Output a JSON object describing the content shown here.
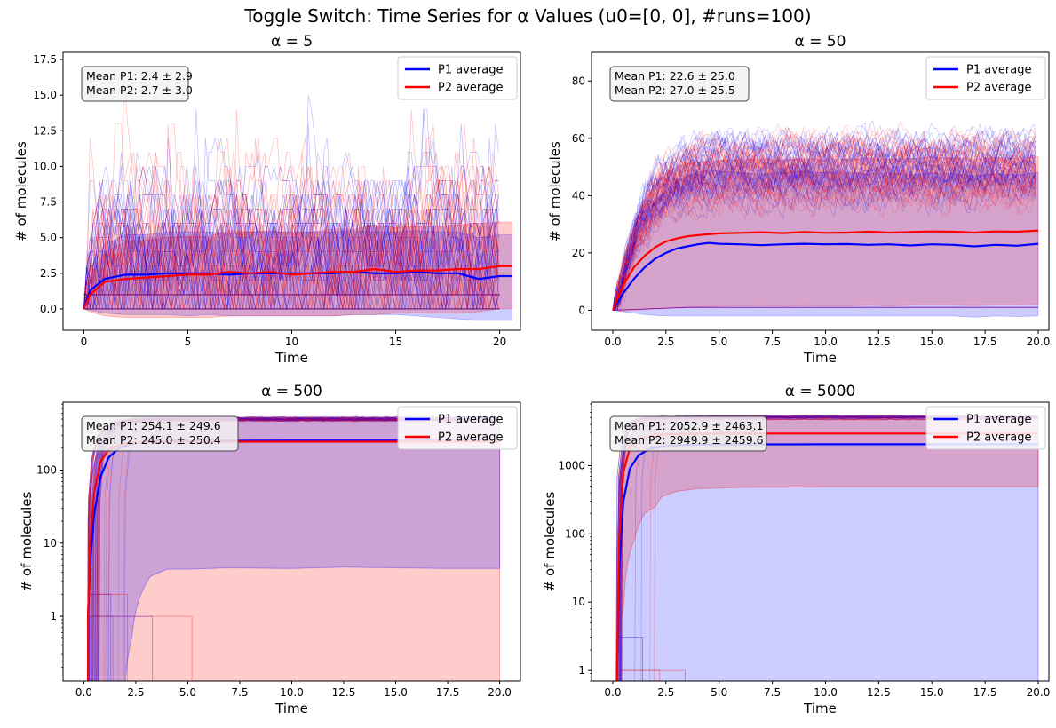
{
  "figure": {
    "suptitle": "Toggle Switch: Time Series for α Values (u0=[0, 0], #runs=100)"
  },
  "colors": {
    "p1": "#0000ff",
    "p2": "#ff0000",
    "p1_band": "#ccccff",
    "p2_band": "#ffcccc",
    "overlap_band": "#d6a3cc"
  },
  "chart_data": [
    {
      "type": "line",
      "title": "α = 5",
      "xlabel": "Time",
      "ylabel": "# of molecules",
      "yscale": "linear",
      "xlim": [
        -1,
        21
      ],
      "ylim": [
        -1.5,
        18
      ],
      "xticks": [
        0,
        5,
        10,
        15,
        20
      ],
      "xtick_labels": [
        "0",
        "5",
        "10",
        "15",
        "20"
      ],
      "yticks": [
        0,
        2.5,
        5,
        7.5,
        10,
        12.5,
        15,
        17.5
      ],
      "ytick_labels": [
        "0.0",
        "2.5",
        "5.0",
        "7.5",
        "10.0",
        "12.5",
        "15.0",
        "17.5"
      ],
      "legend": [
        "P1 average",
        "P2 average"
      ],
      "legend_position": "top-right",
      "stats_box": [
        "Mean P1: 2.4 ± 2.9",
        "Mean P2: 2.7 ± 3.0"
      ],
      "series": [
        {
          "name": "P1 average",
          "x": [
            0,
            0.3,
            1,
            2,
            3,
            4,
            5,
            6,
            7,
            8,
            9,
            10,
            11,
            12,
            13,
            14,
            15,
            16,
            17,
            18,
            19,
            20,
            20.6
          ],
          "values": [
            0,
            1.3,
            2.1,
            2.4,
            2.4,
            2.5,
            2.5,
            2.5,
            2.4,
            2.5,
            2.5,
            2.5,
            2.5,
            2.5,
            2.6,
            2.5,
            2.5,
            2.6,
            2.5,
            2.5,
            2.1,
            2.3,
            2.3
          ]
        },
        {
          "name": "P2 average",
          "x": [
            0,
            0.3,
            1,
            2,
            3,
            4,
            5,
            6,
            7,
            8,
            9,
            10,
            11,
            12,
            13,
            14,
            15,
            16,
            17,
            18,
            19,
            20,
            20.6
          ],
          "values": [
            0,
            1.0,
            1.9,
            2.1,
            2.2,
            2.3,
            2.4,
            2.4,
            2.6,
            2.5,
            2.6,
            2.4,
            2.5,
            2.6,
            2.6,
            2.8,
            2.6,
            2.7,
            2.7,
            2.8,
            2.8,
            3.0,
            3.0
          ]
        }
      ],
      "p1_lower": [
        0,
        -0.1,
        -0.3,
        -0.4,
        -0.4,
        -0.4,
        -0.5,
        -0.4,
        -0.5,
        -0.5,
        -0.5,
        -0.5,
        -0.5,
        -0.5,
        -0.4,
        -0.4,
        -0.4,
        -0.5,
        -0.6,
        -0.7,
        -0.8,
        -0.8,
        -0.8
      ],
      "p1_upper": [
        0,
        2.8,
        4.5,
        5.2,
        5.2,
        5.4,
        5.4,
        5.4,
        5.3,
        5.4,
        5.4,
        5.4,
        5.4,
        5.4,
        5.5,
        5.4,
        5.4,
        5.5,
        5.4,
        5.4,
        5.0,
        5.2,
        5.2
      ],
      "p2_lower": [
        0,
        -0.2,
        -0.5,
        -0.6,
        -0.6,
        -0.6,
        -0.6,
        -0.6,
        -0.5,
        -0.5,
        -0.5,
        -0.5,
        -0.5,
        -0.5,
        -0.4,
        -0.4,
        -0.3,
        -0.3,
        -0.3,
        -0.3,
        -0.2,
        0.0,
        0.0
      ],
      "p2_upper": [
        0,
        2.3,
        4.0,
        4.7,
        4.8,
        5.0,
        5.1,
        5.1,
        5.5,
        5.4,
        5.5,
        5.3,
        5.4,
        5.6,
        5.6,
        5.9,
        5.7,
        5.8,
        5.8,
        5.9,
        6.0,
        6.1,
        6.1
      ]
    },
    {
      "type": "line",
      "title": "α = 50",
      "xlabel": "Time",
      "ylabel": "# of molecules",
      "yscale": "linear",
      "xlim": [
        -1,
        20.5
      ],
      "ylim": [
        -7,
        90
      ],
      "xticks": [
        0,
        2.5,
        5,
        7.5,
        10,
        12.5,
        15,
        17.5,
        20
      ],
      "xtick_labels": [
        "0.0",
        "2.5",
        "5.0",
        "7.5",
        "10.0",
        "12.5",
        "15.0",
        "17.5",
        "20.0"
      ],
      "yticks": [
        0,
        20,
        40,
        60,
        80
      ],
      "ytick_labels": [
        "0",
        "20",
        "40",
        "60",
        "80"
      ],
      "legend": [
        "P1 average",
        "P2 average"
      ],
      "legend_position": "top-right",
      "stats_box": [
        "Mean P1: 22.6 ± 25.0",
        "Mean P2: 27.0 ± 25.5"
      ],
      "series": [
        {
          "name": "P1 average",
          "x": [
            0,
            0.5,
            1,
            1.5,
            2,
            2.5,
            3,
            3.5,
            4,
            4.5,
            5,
            6,
            7,
            8,
            9,
            10,
            11,
            12,
            13,
            14,
            15,
            16,
            17,
            18,
            19,
            20
          ],
          "values": [
            0,
            6,
            11,
            15,
            18,
            20,
            21.5,
            22.3,
            23,
            23.5,
            23.2,
            23,
            22.7,
            23,
            23.2,
            23,
            23.1,
            22.8,
            23,
            22.6,
            23,
            22.8,
            22.3,
            22.8,
            22.5,
            23.2
          ]
        },
        {
          "name": "P2 average",
          "x": [
            0,
            0.5,
            1,
            1.5,
            2,
            2.5,
            3,
            3.5,
            4,
            4.5,
            5,
            6,
            7,
            8,
            9,
            10,
            11,
            12,
            13,
            14,
            15,
            16,
            17,
            18,
            19,
            20
          ],
          "values": [
            0,
            9,
            15,
            19,
            22,
            24,
            25,
            25.8,
            26.2,
            26.5,
            26.8,
            27,
            27.2,
            26.9,
            27.3,
            27,
            27.1,
            27.4,
            27.1,
            27.3,
            27.5,
            27.4,
            27.1,
            27.5,
            27.4,
            27.8
          ]
        }
      ],
      "p1_lower": [
        0,
        -0.5,
        -1,
        -1.5,
        -1.8,
        -2,
        -2,
        -2,
        -2,
        -2,
        -2,
        -2,
        -2,
        -2,
        -2,
        -2,
        -2,
        -2,
        -2,
        -2,
        -2,
        -2,
        -2.4,
        -2,
        -2.2,
        -2
      ],
      "p1_upper": [
        0,
        12,
        23,
        32,
        38,
        42,
        45,
        47,
        48,
        49,
        48.5,
        48,
        47.5,
        48,
        48.4,
        48,
        48.2,
        47.6,
        48,
        47.2,
        48,
        47.6,
        47,
        47.6,
        47.2,
        48.2
      ],
      "p2_lower": [
        0,
        -0.3,
        0,
        0.2,
        0.4,
        0.6,
        0.8,
        1,
        1.2,
        1.3,
        1.4,
        1.5,
        1.6,
        1.4,
        1.6,
        1.5,
        1.5,
        1.7,
        1.5,
        1.7,
        1.8,
        1.7,
        1.6,
        1.8,
        1.8,
        2
      ],
      "p2_upper": [
        0,
        18,
        30,
        38,
        44,
        48,
        50,
        51,
        51.5,
        52,
        52.3,
        52.5,
        52.8,
        52.4,
        53,
        52.5,
        52.7,
        53.1,
        52.6,
        53,
        53.3,
        53.2,
        52.7,
        53.2,
        53,
        53.6
      ]
    },
    {
      "type": "line",
      "title": "α = 500",
      "xlabel": "Time",
      "ylabel": "# of molecules",
      "yscale": "log",
      "xlim": [
        -1,
        21
      ],
      "ylim": [
        0.13,
        850
      ],
      "xticks": [
        0,
        2.5,
        5,
        7.5,
        10,
        12.5,
        15,
        17.5,
        20
      ],
      "xtick_labels": [
        "0.0",
        "2.5",
        "5.0",
        "7.5",
        "10.0",
        "12.5",
        "15.0",
        "17.5",
        "20.0"
      ],
      "yticks": [
        1,
        10,
        100
      ],
      "ytick_labels": [
        "1",
        "10",
        "100"
      ],
      "legend": [
        "P1 average",
        "P2 average"
      ],
      "legend_position": "top-right",
      "stats_box": [
        "Mean P1: 254.1 ± 249.6",
        "Mean P2: 245.0 ± 250.4"
      ],
      "series": [
        {
          "name": "P1 average",
          "x": [
            0.2,
            0.3,
            0.5,
            0.8,
            1.2,
            1.7,
            2.3,
            3,
            4,
            6,
            8,
            10,
            12,
            14,
            16,
            18,
            20
          ],
          "values": [
            1,
            5,
            25,
            80,
            150,
            200,
            230,
            245,
            250,
            252,
            253,
            254,
            254,
            254,
            254,
            254,
            254
          ]
        },
        {
          "name": "P2 average",
          "x": [
            0.2,
            0.3,
            0.5,
            0.8,
            1.2,
            1.7,
            2.3,
            3,
            4,
            6,
            8,
            10,
            12,
            14,
            16,
            18,
            20
          ],
          "values": [
            1,
            10,
            50,
            130,
            190,
            220,
            235,
            240,
            243,
            244,
            245,
            245,
            245,
            245,
            245,
            245,
            245
          ]
        }
      ],
      "band_lower_p1": [
        [
          0.2,
          0.13
        ],
        [
          2.0,
          0.13
        ],
        [
          2.3,
          0.5
        ],
        [
          2.6,
          1.5
        ],
        [
          3.2,
          3.5
        ],
        [
          4,
          4.4
        ],
        [
          5,
          4.4
        ],
        [
          7,
          4.6
        ],
        [
          10,
          4.5
        ],
        [
          12.5,
          4.7
        ],
        [
          15,
          4.6
        ],
        [
          17.5,
          4.5
        ],
        [
          20,
          4.5
        ]
      ],
      "band_upper": [
        [
          0.2,
          20
        ],
        [
          0.5,
          120
        ],
        [
          1,
          300
        ],
        [
          1.5,
          440
        ],
        [
          2,
          480
        ],
        [
          3,
          495
        ],
        [
          5,
          500
        ],
        [
          10,
          502
        ],
        [
          15,
          500
        ],
        [
          20,
          500
        ]
      ],
      "bands_top_ymax": 600
    },
    {
      "type": "line",
      "title": "α = 5000",
      "xlabel": "Time",
      "ylabel": "# of molecules",
      "yscale": "log",
      "xlim": [
        -1,
        20.5
      ],
      "ylim": [
        0.7,
        8500
      ],
      "xticks": [
        0,
        2.5,
        5,
        7.5,
        10,
        12.5,
        15,
        17.5,
        20
      ],
      "xtick_labels": [
        "0.0",
        "2.5",
        "5.0",
        "7.5",
        "10.0",
        "12.5",
        "15.0",
        "17.5",
        "20.0"
      ],
      "yticks": [
        1,
        10,
        100,
        1000
      ],
      "ytick_labels": [
        "1",
        "10",
        "100",
        "1000"
      ],
      "legend": [
        "P1 average",
        "P2 average"
      ],
      "legend_position": "top-right",
      "stats_box": [
        "Mean P1: 2052.9 ± 2463.1",
        "Mean P2: 2949.9 ± 2459.6"
      ],
      "series": [
        {
          "name": "P1 average",
          "x": [
            0.2,
            0.3,
            0.5,
            0.8,
            1.2,
            1.7,
            2.3,
            3,
            4,
            6,
            8,
            10,
            12,
            14,
            16,
            18,
            20
          ],
          "values": [
            1,
            30,
            300,
            900,
            1400,
            1750,
            1900,
            1980,
            2030,
            2050,
            2052,
            2053,
            2053,
            2053,
            2053,
            2053,
            2053
          ]
        },
        {
          "name": "P2 average",
          "x": [
            0.2,
            0.3,
            0.5,
            0.8,
            1.2,
            1.7,
            2.3,
            3,
            4,
            6,
            8,
            10,
            12,
            14,
            16,
            18,
            20
          ],
          "values": [
            1,
            80,
            800,
            1800,
            2400,
            2700,
            2850,
            2920,
            2940,
            2948,
            2950,
            2950,
            2950,
            2950,
            2950,
            2950,
            2950
          ]
        }
      ],
      "band_blue_lower": 0.7,
      "band_red_lower": [
        [
          0.2,
          0.7
        ],
        [
          0.5,
          8
        ],
        [
          1,
          80
        ],
        [
          1.5,
          200
        ],
        [
          2,
          250
        ],
        [
          2.3,
          350
        ],
        [
          3,
          420
        ],
        [
          4,
          460
        ],
        [
          6,
          480
        ],
        [
          10,
          490
        ],
        [
          15,
          490
        ],
        [
          20,
          490
        ]
      ],
      "band_upper": [
        [
          0.2,
          50
        ],
        [
          0.5,
          1500
        ],
        [
          1,
          3500
        ],
        [
          1.5,
          4500
        ],
        [
          2,
          5000
        ],
        [
          3,
          5300
        ],
        [
          5,
          5400
        ],
        [
          10,
          5400
        ],
        [
          20,
          5400
        ]
      ],
      "bands_top_ymax": 5500
    }
  ]
}
